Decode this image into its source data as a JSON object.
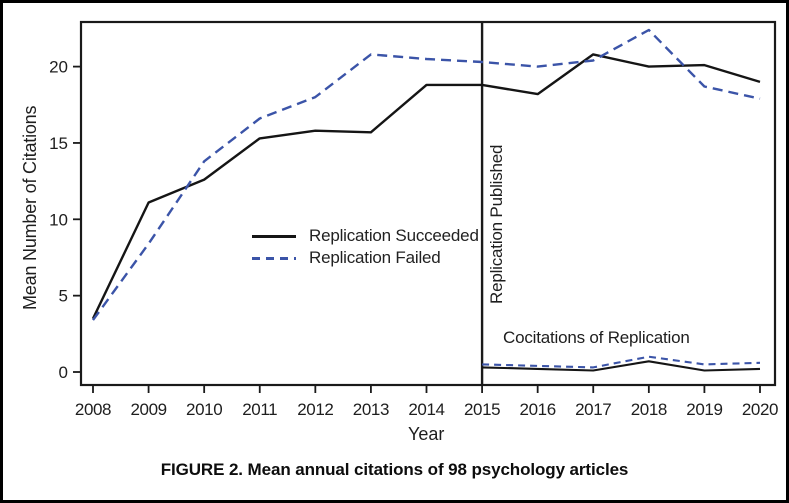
{
  "figure": {
    "caption": "FIGURE 2. Mean annual citations of 98 psychology articles"
  },
  "colors": {
    "succeeded_line": "#151515",
    "failed_line": "#3b54a8",
    "axis": "#1a1a1a",
    "text": "#1e1e1e",
    "frame_border": "#000000",
    "background": "#ffffff"
  },
  "chart_data": {
    "type": "line",
    "title": "",
    "xlabel": "Year",
    "ylabel": "Mean Number of Citations",
    "x_ticks": [
      2008,
      2009,
      2010,
      2011,
      2012,
      2013,
      2014,
      2015,
      2016,
      2017,
      2018,
      2019,
      2020
    ],
    "y_ticks": [
      0,
      5,
      10,
      15,
      20
    ],
    "xlim": [
      2007.8,
      2020.27
    ],
    "ylim": [
      -0.85,
      22.9
    ],
    "grid": false,
    "legend_position": "inside center-left",
    "legend": [
      {
        "label": "Replication Succeeded",
        "style": "solid",
        "color": "#151515"
      },
      {
        "label": "Replication Failed",
        "style": "dashed",
        "color": "#3b54a8"
      }
    ],
    "series": [
      {
        "name": "Replication Succeeded",
        "style": "solid",
        "color": "#151515",
        "x": [
          2008,
          2009,
          2010,
          2011,
          2012,
          2013,
          2014,
          2015,
          2016,
          2017,
          2018,
          2019,
          2020
        ],
        "values": [
          3.5,
          11.1,
          12.6,
          15.3,
          15.8,
          15.7,
          18.8,
          18.8,
          18.2,
          20.8,
          20.0,
          20.1,
          19.0
        ]
      },
      {
        "name": "Replication Failed",
        "style": "dashed",
        "color": "#3b54a8",
        "x": [
          2008,
          2009,
          2010,
          2011,
          2012,
          2013,
          2014,
          2015,
          2016,
          2017,
          2018,
          2019,
          2020
        ],
        "values": [
          3.4,
          8.4,
          13.8,
          16.6,
          18.0,
          20.8,
          20.5,
          20.3,
          20.0,
          20.4,
          22.4,
          18.7,
          17.9
        ]
      },
      {
        "name": "Cocitations of Replication (Succeeded)",
        "style": "solid",
        "color": "#151515",
        "x": [
          2015,
          2016,
          2017,
          2018,
          2019,
          2020
        ],
        "values": [
          0.3,
          0.2,
          0.1,
          0.7,
          0.1,
          0.2
        ]
      },
      {
        "name": "Cocitations of Replication (Failed)",
        "style": "dashed",
        "color": "#3b54a8",
        "x": [
          2015,
          2016,
          2017,
          2018,
          2019,
          2020
        ],
        "values": [
          0.5,
          0.4,
          0.3,
          1.0,
          0.5,
          0.6
        ]
      }
    ],
    "annotations": {
      "vline_year": 2015,
      "vline_label": "Replication Published",
      "cocitations_label": "Cocitations of Replication"
    }
  }
}
